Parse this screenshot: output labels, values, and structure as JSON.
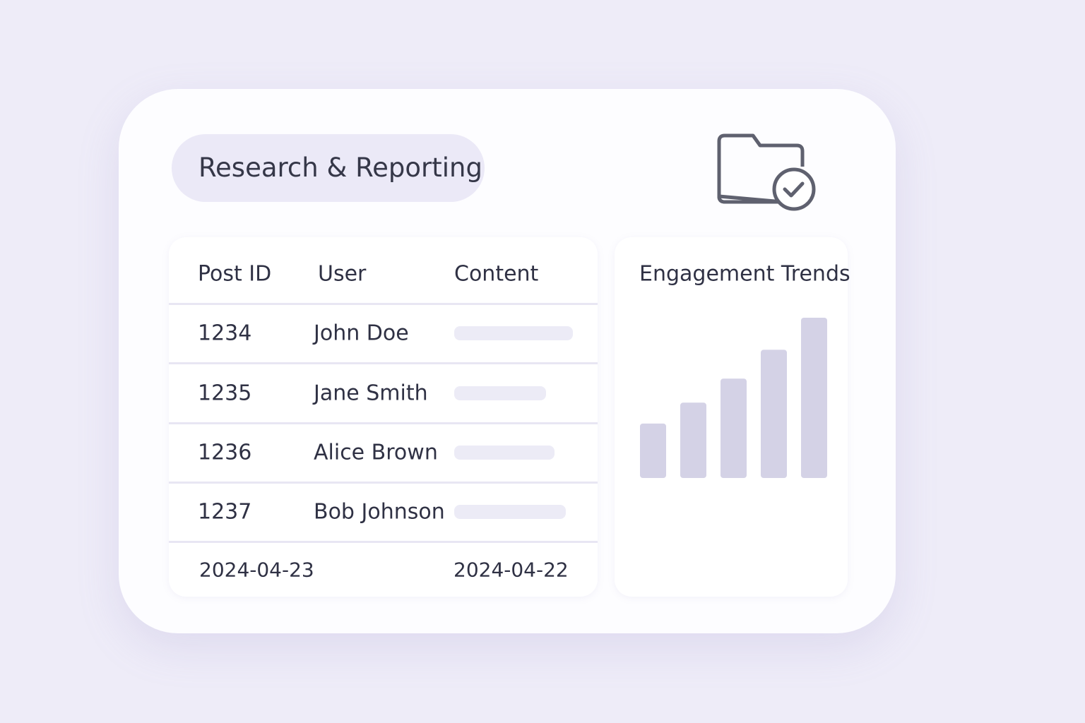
{
  "header": {
    "title": "Research & Reporting"
  },
  "table": {
    "columns": [
      "Post ID",
      "User",
      "Content"
    ],
    "rows": [
      [
        "1234",
        "John Doe"
      ],
      [
        "1235",
        "Jane Smith"
      ],
      [
        "1236",
        "Alice Brown"
      ],
      [
        "1237",
        "Bob Johnson"
      ]
    ],
    "footer": [
      "2024-04-23",
      "2024-04-22"
    ]
  },
  "chart_data": {
    "type": "bar",
    "title": "Engagement Trends",
    "values": [
      34,
      47,
      62,
      80,
      100
    ],
    "color": "#d4d2e6",
    "ylim": [
      0,
      100
    ]
  }
}
